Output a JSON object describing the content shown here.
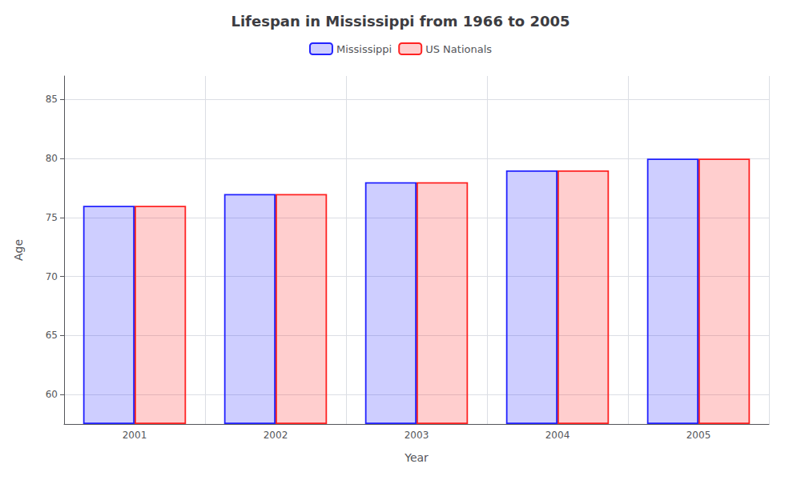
{
  "chart_data": {
    "type": "bar",
    "title": "Lifespan in Mississippi from 1966 to 2005",
    "x_label": "Year",
    "y_label": "Age",
    "categories": [
      "2001",
      "2002",
      "2003",
      "2004",
      "2005"
    ],
    "series": [
      {
        "name": "Mississippi",
        "color": "#2222ff",
        "values": [
          76,
          77,
          78,
          79,
          80
        ]
      },
      {
        "name": "US Nationals",
        "color": "#ff2222",
        "values": [
          76,
          77,
          78,
          79,
          80
        ]
      }
    ],
    "ylim": [
      57.5,
      87
    ],
    "yticks": [
      60,
      65,
      70,
      75,
      80,
      85
    ],
    "grid": true,
    "legend": "top"
  }
}
